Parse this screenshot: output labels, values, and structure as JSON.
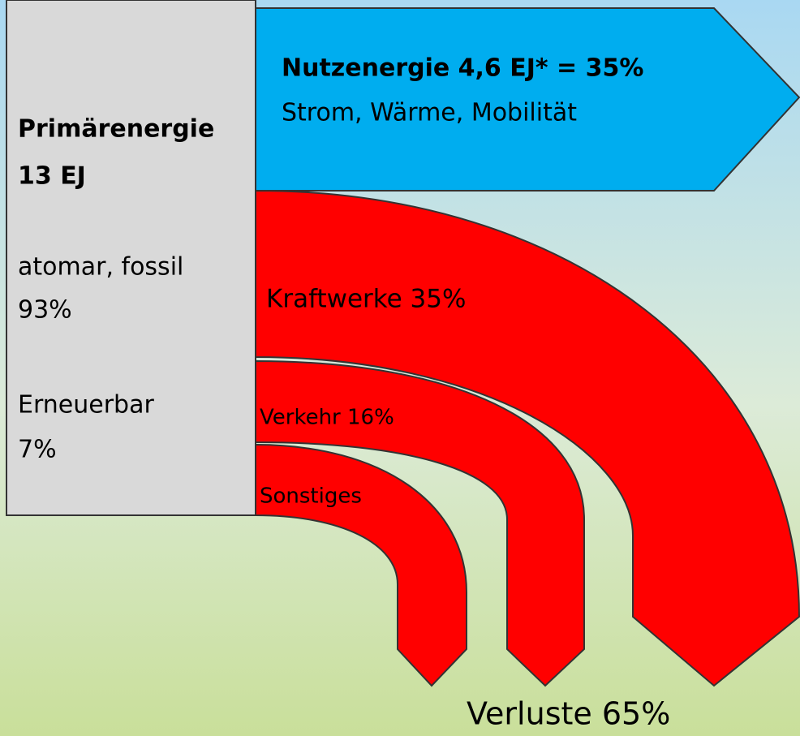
{
  "usable": {
    "title": "Nutzenergie 4,6 EJ* = 35%",
    "subtitle": "Strom, Wärme, Mobilität"
  },
  "primary": {
    "title": "Primärenergie",
    "amount": "13 EJ",
    "sources": [
      {
        "label": "atomar, fossil",
        "share": "93%"
      },
      {
        "label": "Erneuerbar",
        "share": "7%"
      }
    ]
  },
  "losses": {
    "flows": [
      "Kraftwerke 35%",
      "Verkehr 16%",
      "Sonstiges"
    ],
    "total": "Verluste 65%"
  }
}
